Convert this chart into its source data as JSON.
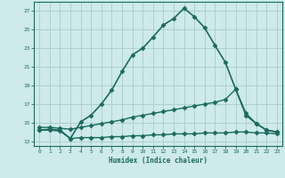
{
  "xlabel": "Humidex (Indice chaleur)",
  "background_color": "#ceeaea",
  "grid_color": "#aacccc",
  "line_color": "#1a6b5e",
  "xlim": [
    -0.5,
    23.5
  ],
  "ylim": [
    12.5,
    28.0
  ],
  "xticks": [
    0,
    1,
    2,
    3,
    4,
    5,
    6,
    7,
    8,
    9,
    10,
    11,
    12,
    13,
    14,
    15,
    16,
    17,
    18,
    19,
    20,
    21,
    22,
    23
  ],
  "yticks": [
    13,
    15,
    17,
    19,
    21,
    23,
    25,
    27
  ],
  "series": [
    {
      "x": [
        0,
        1,
        2,
        3,
        4,
        5,
        6,
        7,
        8,
        9,
        10,
        11,
        12,
        13,
        14,
        15,
        16,
        17,
        18,
        19,
        20,
        21,
        22,
        23
      ],
      "y": [
        14.2,
        14.3,
        14.2,
        13.3,
        15.1,
        15.8,
        17.0,
        18.5,
        20.5,
        22.3,
        23.0,
        24.2,
        25.5,
        26.2,
        27.3,
        26.4,
        25.2,
        23.3,
        21.5,
        18.6,
        15.8,
        14.9,
        14.2,
        14.0
      ],
      "marker": "D",
      "markersize": 2.5,
      "linewidth": 1.2,
      "linestyle": "-"
    },
    {
      "x": [
        0,
        1,
        2,
        3,
        4,
        5,
        6,
        7,
        8,
        9,
        10,
        11,
        12,
        13,
        14,
        15,
        16,
        17,
        18,
        19,
        20,
        21,
        22,
        23
      ],
      "y": [
        14.5,
        14.5,
        14.4,
        14.3,
        14.5,
        14.7,
        14.9,
        15.1,
        15.3,
        15.6,
        15.8,
        16.0,
        16.2,
        16.4,
        16.6,
        16.8,
        17.0,
        17.2,
        17.5,
        18.6,
        16.0,
        14.9,
        14.2,
        14.0
      ],
      "marker": "D",
      "markersize": 2.5,
      "linewidth": 1.0,
      "linestyle": "-"
    },
    {
      "x": [
        0,
        1,
        2,
        3,
        4,
        5,
        6,
        7,
        8,
        9,
        10,
        11,
        12,
        13,
        14,
        15,
        16,
        17,
        18,
        19,
        20,
        21,
        22,
        23
      ],
      "y": [
        14.2,
        14.2,
        14.1,
        13.3,
        13.4,
        13.4,
        13.4,
        13.5,
        13.5,
        13.6,
        13.6,
        13.7,
        13.7,
        13.8,
        13.8,
        13.8,
        13.9,
        13.9,
        13.9,
        14.0,
        14.0,
        13.9,
        13.9,
        13.8
      ],
      "marker": "D",
      "markersize": 2.5,
      "linewidth": 1.0,
      "linestyle": "-"
    }
  ]
}
